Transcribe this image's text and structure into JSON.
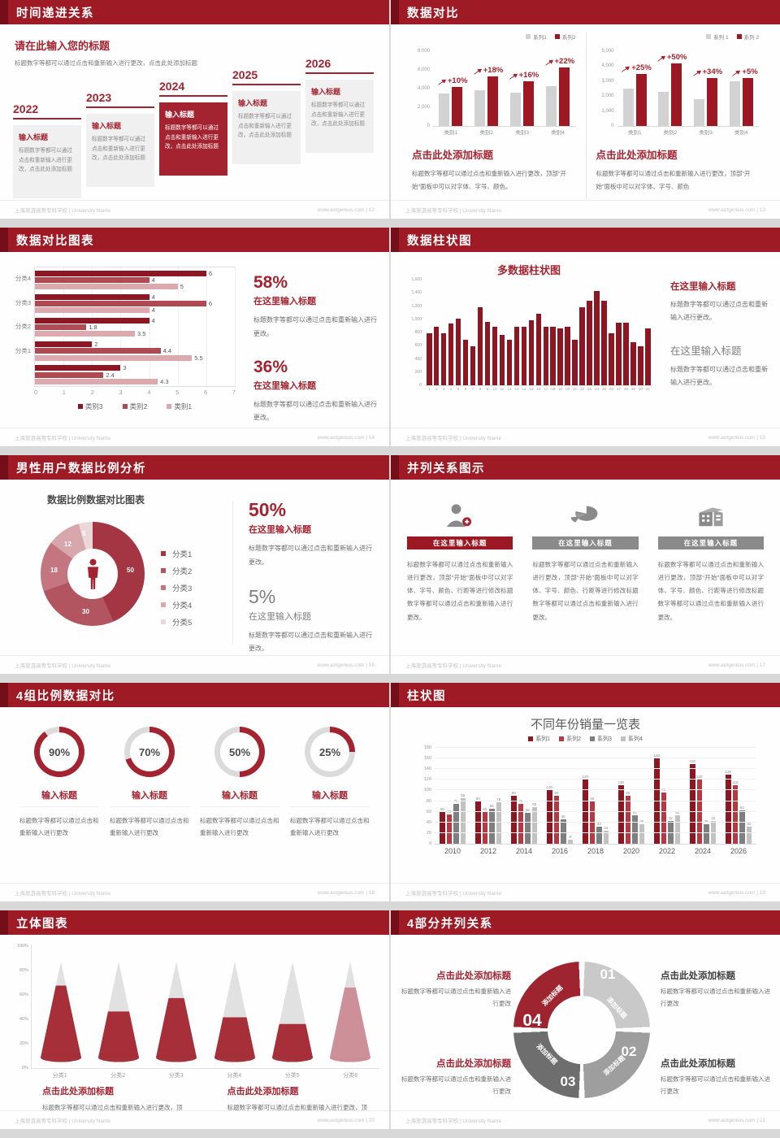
{
  "footer": {
    "school": "上海旅游高等专科学校 | University Name",
    "site": "www.aotgenius.com"
  },
  "colors": {
    "header": "#9E1B26",
    "stripe": "#740F19",
    "accent": "#A32430",
    "dark_red": "#8C1622",
    "gray_bar": "#D2D2D2",
    "series_h": [
      "#8C1622",
      "#B04A52",
      "#DCA9AE"
    ],
    "donut": [
      "#A43543",
      "#B35560",
      "#C37680",
      "#D8A7AC",
      "#EBD6D8"
    ],
    "grouped": [
      "#8C1622",
      "#B23A45",
      "#7F7F7F",
      "#C2C2C2"
    ],
    "cycle": [
      "#C9C9C9",
      "#9E9E9E",
      "#6E6E6E",
      "#9E2430"
    ],
    "cone": "#9C1823",
    "cone_light": "#C9848D"
  },
  "slides": {
    "timeline": {
      "header": "时间递进关系",
      "page": "12",
      "intro_title": "请在此输入您的标题",
      "intro_body": "标题数字等都可以通过点击和重新输入进行更改，点击此处添加标题",
      "items": [
        {
          "year": "2022",
          "title": "输入标题",
          "body": "标题数字等都可以通过点击和重新输入进行更改，点击此处添加标题",
          "highlight": false
        },
        {
          "year": "2023",
          "title": "输入标题",
          "body": "标题数字等都可以通过点击和重新输入进行更改，点击此处添加标题",
          "highlight": false
        },
        {
          "year": "2024",
          "title": "输入标题",
          "body": "标题数字等都可以通过点击和重新输入进行更改，点击此处添加标题",
          "highlight": true
        },
        {
          "year": "2025",
          "title": "输入标题",
          "body": "标题数字等都可以通过点击和重新输入进行更改，点击此处添加标题",
          "highlight": false
        },
        {
          "year": "2026",
          "title": "输入标题",
          "body": "标题数字等都可以通过点击和重新输入进行更改，点击此处添加标题",
          "highlight": false
        }
      ]
    },
    "compare": {
      "header": "数据对比",
      "page": "13",
      "charts": [
        {
          "type": "bar",
          "legend": [
            "系列1",
            "系列2"
          ],
          "ymax": 8000,
          "yticks": [
            "8,000",
            "6,000",
            "4,000",
            "2,000",
            "0"
          ],
          "categories": [
            "类别1",
            "类别2",
            "类别3",
            "类别4"
          ],
          "series1": [
            3500,
            3800,
            3600,
            4300
          ],
          "series2": [
            4200,
            5300,
            4800,
            6300
          ],
          "pct": [
            "+10%",
            "+18%",
            "+16%",
            "+22%"
          ],
          "title": "点击此处添加标题",
          "body": "标题数字等都可以通过点击和重新输入进行更改，顶部“开始”面板中可以对字体、字号、颜色。"
        },
        {
          "type": "bar",
          "legend": [
            "系列 1",
            "系列 2"
          ],
          "ymax": 5000,
          "yticks": [
            "5,000",
            "4,000",
            "3,000",
            "2,000",
            "1,000",
            "0"
          ],
          "categories": [
            "类别1",
            "类别2",
            "类别3",
            "类别4"
          ],
          "series1": [
            2500,
            2300,
            1800,
            3000
          ],
          "series2": [
            3500,
            4200,
            3200,
            3200
          ],
          "pct": [
            "+25%",
            "+50%",
            "+34%",
            "+5%"
          ],
          "title": "点击此处添加标题",
          "body": "标题数字等都可以通过点击和重新输入进行更改，顶部“开始”面板中可以对字体、字号、颜色"
        }
      ]
    },
    "hbar": {
      "header": "数据对比图表",
      "page": "14",
      "type": "bar-horizontal",
      "xmax": 7,
      "xticks": [
        "0",
        "1",
        "2",
        "3",
        "4",
        "5",
        "6",
        "7"
      ],
      "legend": [
        "类别3",
        "类别2",
        "类别1"
      ],
      "groups": [
        {
          "label": "分类4",
          "values": [
            6,
            4,
            5
          ]
        },
        {
          "label": "分类3",
          "values": [
            4,
            6,
            4
          ]
        },
        {
          "label": "分类2",
          "values": [
            4,
            1.8,
            3.5
          ]
        },
        {
          "label": "分类1",
          "values": [
            2,
            4.4,
            5.5
          ]
        },
        {
          "label": "",
          "values": [
            3,
            2.4,
            4.3
          ]
        }
      ],
      "stats": [
        {
          "value": "58%",
          "title": "在这里输入标题",
          "body": "标题数字等都可以通过点击和重新输入进行更改。"
        },
        {
          "value": "36%",
          "title": "在这里输入标题",
          "body": "标题数字等都可以通过点击和重新输入进行更改。"
        }
      ]
    },
    "col31": {
      "header": "数据柱状图",
      "page": "15",
      "title": "多数据柱状图",
      "type": "bar",
      "ymax": 1600,
      "yticks": [
        "1,600",
        "1,400",
        "1,200",
        "1,000",
        "800",
        "600",
        "400",
        "200",
        "0"
      ],
      "values": [
        800,
        900,
        800,
        950,
        1020,
        700,
        600,
        1200,
        980,
        900,
        780,
        700,
        900,
        900,
        1000,
        1100,
        900,
        900,
        880,
        900,
        700,
        1200,
        1300,
        1450,
        1300,
        800,
        960,
        960,
        660,
        600,
        870
      ],
      "blocks": [
        {
          "title": "在这里输入标题",
          "body": "标题数字等都可以通过点击和重新输入进行更改。",
          "style": "red"
        },
        {
          "title": "在这里输入标题",
          "body": "标题数字等都可以通过点击和重新输入进行更改。",
          "style": "gray"
        }
      ]
    },
    "donut": {
      "header": "男性用户数据比例分析",
      "page": "16",
      "title": "数据比例数据对比图表",
      "type": "pie",
      "values": [
        50,
        30,
        18,
        12,
        5
      ],
      "legend": [
        "分类1",
        "分类2",
        "分类3",
        "分类4",
        "分类5"
      ],
      "stats": [
        {
          "value": "50%",
          "title": "在这里输入标题",
          "body": "标题数字等都可以通过点击和重新输入进行更改。",
          "style": "red"
        },
        {
          "value": "5%",
          "title": "在这里输入标题",
          "body": "标题数字等都可以通过点击和重新输入进行更改。",
          "style": "gray"
        }
      ]
    },
    "parallel": {
      "header": "并列关系图示",
      "page": "17",
      "items": [
        {
          "icon": "person-plus-icon",
          "title": "在这里输入标题",
          "style": "red",
          "body": "标题数字等都可以通过点击和重新输入进行更改，顶部“开始”面板中可以对字体、字号、颜色、行距等进行修改标题数字等都可以通过点击和重新输入进行更改。"
        },
        {
          "icon": "pie-chart-icon",
          "title": "在这里输入标题",
          "style": "gray",
          "body": "标题数字等都可以通过点击和重新输入进行更改，顶部“开始”面板中可以对字体、字号、颜色、行距等进行修改标题数字等都可以通过点击和重新输入进行更改。"
        },
        {
          "icon": "building-icon",
          "title": "在这里输入标题",
          "style": "gray",
          "body": "标题数字等都可以通过点击和重新输入进行更改，顶部“开始”面板中可以对字体、字号、颜色、行距等进行修改标题数字等都可以通过点击和重新输入进行更改。"
        }
      ]
    },
    "rings": {
      "header": "4组比例数据对比",
      "page": "18",
      "type": "pie",
      "items": [
        {
          "pct": 90,
          "title": "输入标题",
          "body": "标题数字等都可以通过点击和重新输入进行更改"
        },
        {
          "pct": 70,
          "title": "输入标题",
          "body": "标题数字等都可以通过点击和重新输入进行更改"
        },
        {
          "pct": 50,
          "title": "输入标题",
          "body": "标题数字等都可以通过点击和重新输入进行更改"
        },
        {
          "pct": 25,
          "title": "输入标题",
          "body": "标题数字等都可以通过点击和重新输入进行更改"
        }
      ]
    },
    "grouped": {
      "header": "柱状图",
      "page": "19",
      "title": "不同年份销量一览表",
      "type": "bar",
      "ymax": 180,
      "yticks": [
        0,
        20,
        40,
        60,
        80,
        100,
        120,
        140,
        160,
        180
      ],
      "categories": [
        "2010",
        "2012",
        "2014",
        "2016",
        "2018",
        "2020",
        "2022",
        "2024",
        "2026"
      ],
      "series": [
        {
          "name": "系列1",
          "values": [
            60,
            80,
            90,
            100,
            120,
            110,
            160,
            150,
            130
          ]
        },
        {
          "name": "系列2",
          "values": [
            55,
            60,
            75,
            90,
            80,
            90,
            96,
            120,
            110
          ]
        },
        {
          "name": "系列3",
          "values": [
            75,
            65,
            58,
            46,
            32,
            54,
            42,
            36,
            62
          ]
        },
        {
          "name": "系列4",
          "values": [
            85,
            78,
            68,
            8,
            24,
            36,
            53,
            42,
            32
          ]
        }
      ]
    },
    "cones": {
      "header": "立体图表",
      "page": "20",
      "type": "bar",
      "yticks": [
        "100%",
        "80%",
        "60%",
        "40%",
        "20%",
        "0%"
      ],
      "categories": [
        "分类1",
        "分类2",
        "分类3",
        "分类4",
        "分类5",
        "分类6"
      ],
      "values": [
        75,
        48,
        62,
        42,
        35,
        73
      ],
      "blocks": [
        {
          "title": "点击此处添加标题",
          "body": "标题数字等都可以通过点击和重新输入进行更改，顶部“开始”面板中可以修改"
        },
        {
          "title": "点击此处添加标题",
          "body": "标题数字等都可以通过点击和重新输入进行更改，顶部“开始”面板中可以修改"
        }
      ]
    },
    "cycle": {
      "header": "4部分并列关系",
      "page": "21",
      "segments": [
        {
          "num": "01",
          "label": "添加标题"
        },
        {
          "num": "02",
          "label": "添加标题"
        },
        {
          "num": "03",
          "label": "添加标题"
        },
        {
          "num": "04",
          "label": "添加标题"
        }
      ],
      "blocks": [
        {
          "title": "点击此处添加标题",
          "body": "标题数字等都可以通过点击和重新输入进行更改",
          "style": "red",
          "side": "left"
        },
        {
          "title": "点击此处添加标题",
          "body": "标题数字等都可以通过点击和重新输入进行更改",
          "style": "dark",
          "side": "right"
        },
        {
          "title": "点击此处添加标题",
          "body": "标题数字等都可以通过点击和重新输入进行更改",
          "style": "red",
          "side": "left"
        },
        {
          "title": "点击此处添加标题",
          "body": "标题数字等都可以通过点击和重新输入进行更改",
          "style": "dark",
          "side": "right"
        }
      ]
    }
  }
}
